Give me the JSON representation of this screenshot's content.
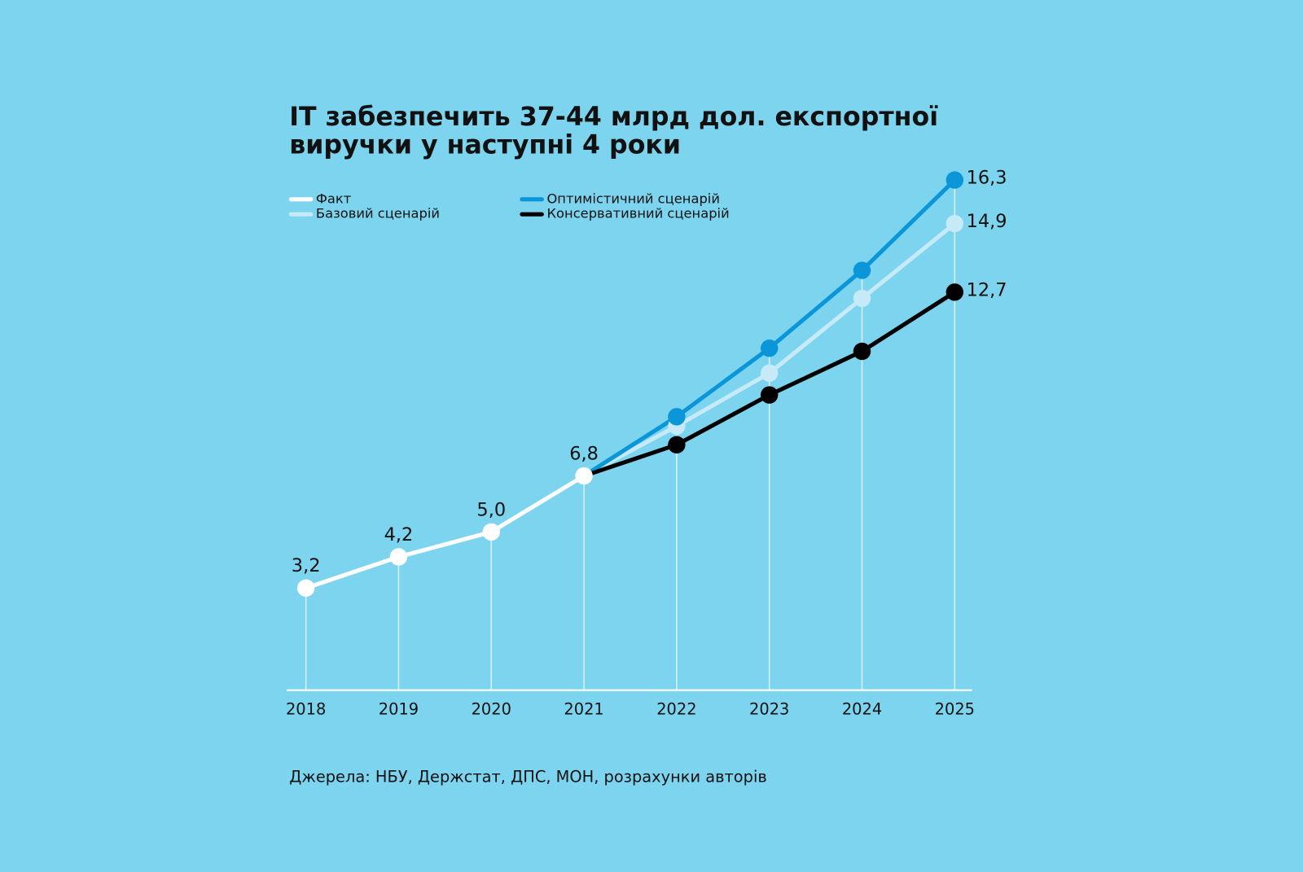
{
  "chart_data": {
    "type": "line",
    "title": "IT забезпечить 37-44 млрд дол. експортної виручки у наступні 4 роки",
    "source": "Джерела: НБУ, Держстат, ДПС, МОН, розрахунки авторів",
    "categories": [
      "2018",
      "2019",
      "2020",
      "2021",
      "2022",
      "2023",
      "2024",
      "2025"
    ],
    "ylim": [
      0,
      17
    ],
    "series": [
      {
        "name": "Факт",
        "color": "#ffffff",
        "values": [
          3.2,
          4.2,
          5.0,
          6.8,
          null,
          null,
          null,
          null
        ],
        "value_labels": [
          "3,2",
          "4,2",
          "5,0",
          "6,8",
          null,
          null,
          null,
          null
        ]
      },
      {
        "name": "Базовий сценарій",
        "color": "#c6eaf7",
        "values": [
          null,
          null,
          null,
          6.8,
          8.4,
          10.1,
          12.5,
          14.9
        ],
        "value_labels": [
          null,
          null,
          null,
          null,
          null,
          null,
          null,
          "14,9"
        ]
      },
      {
        "name": "Оптимістичний сценарій",
        "color": "#0a96d8",
        "values": [
          null,
          null,
          null,
          6.8,
          8.7,
          10.9,
          13.4,
          16.3
        ],
        "value_labels": [
          null,
          null,
          null,
          null,
          null,
          null,
          null,
          "16,3"
        ]
      },
      {
        "name": "Консервативний сценарій",
        "color": "#000000",
        "values": [
          null,
          null,
          null,
          6.8,
          7.8,
          9.4,
          10.8,
          12.7
        ],
        "value_labels": [
          null,
          null,
          null,
          null,
          null,
          null,
          null,
          "12,7"
        ]
      }
    ]
  }
}
